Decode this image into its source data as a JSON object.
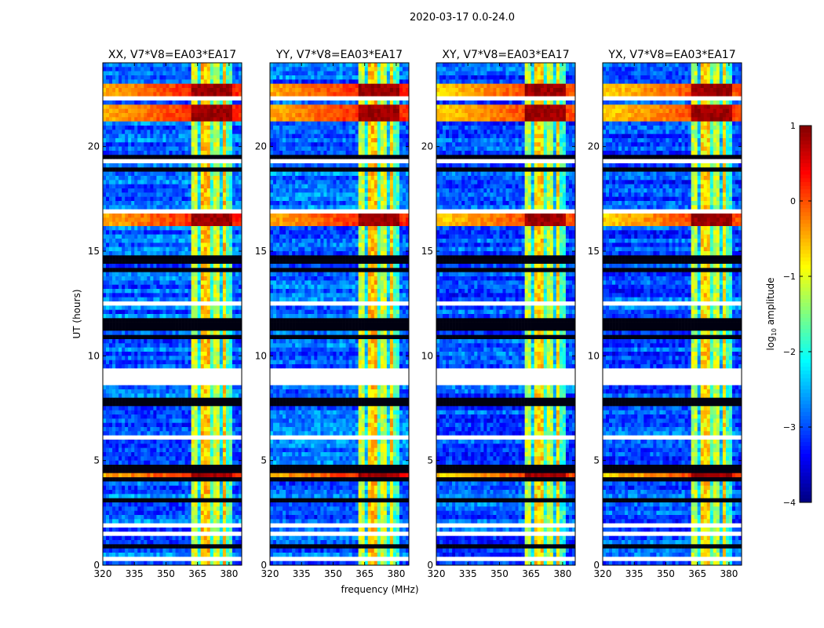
{
  "chart_data": {
    "type": "heatmap",
    "suptitle": "2020-03-17 0.0-24.0",
    "xlabel": "frequency (MHz)",
    "ylabel": "UT (hours)",
    "xlim": [
      320,
      386
    ],
    "ylim": [
      0,
      24
    ],
    "xticks": [
      "320",
      "335",
      "350",
      "365",
      "380"
    ],
    "xtick_values": [
      320,
      335,
      350,
      365,
      380
    ],
    "yticks": [
      "0",
      "5",
      "10",
      "15",
      "20"
    ],
    "ytick_values": [
      0,
      5,
      10,
      15,
      20
    ],
    "colormap": "jet",
    "colorbar": {
      "label": "log10 amplitude",
      "label_main": "log",
      "label_sub": "10",
      "label_rest": " amplitude",
      "range": [
        -4,
        1
      ],
      "ticks": [
        "1",
        "0",
        "−1",
        "−2",
        "−3",
        "−4"
      ],
      "tick_values": [
        1,
        0,
        -1,
        -2,
        -3,
        -4
      ]
    },
    "panels": [
      {
        "title": "XX, V7*V8=EA03*EA17",
        "background_level": -2.9,
        "band_level": -0.9,
        "rfi_level": 0.3
      },
      {
        "title": "YY, V7*V8=EA03*EA17",
        "background_level": -2.9,
        "band_level": -0.9,
        "rfi_level": 0.3
      },
      {
        "title": "XY, V7*V8=EA03*EA17",
        "background_level": -3.0,
        "band_level": -1.0,
        "rfi_level": 0.1
      },
      {
        "title": "YX, V7*V8=EA03*EA17",
        "background_level": -3.0,
        "band_level": -1.0,
        "rfi_level": 0.1
      }
    ],
    "rfi_band_mhz": [
      362,
      382
    ],
    "rfi_subband_dark_channels_mhz": [
      366,
      371.5,
      376.5,
      380
    ],
    "strong_rfi_rows_hours": [
      [
        21.2,
        22.0
      ],
      [
        16.2,
        16.7
      ],
      [
        22.2,
        22.9
      ],
      [
        4.3,
        4.6
      ]
    ],
    "flagged_rows_hours": [
      [
        8.7,
        9.4
      ],
      [
        22.3,
        22.35
      ],
      [
        19.3,
        19.35
      ],
      [
        17.2,
        17.25
      ],
      [
        16.85,
        16.9
      ],
      [
        15.6,
        15.65
      ],
      [
        12.5,
        12.55
      ],
      [
        6.1,
        6.15
      ],
      [
        2.05,
        2.1
      ],
      [
        1.85,
        1.9
      ],
      [
        1.5,
        1.55
      ],
      [
        1.25,
        1.3
      ],
      [
        0.3,
        0.35
      ]
    ],
    "dark_rows_hours": [
      4.2,
      4.5,
      4.75,
      7.7,
      7.9,
      10.8,
      11.3,
      11.6,
      14.1,
      14.6,
      18.9,
      19.5,
      3.1,
      0.9
    ]
  }
}
